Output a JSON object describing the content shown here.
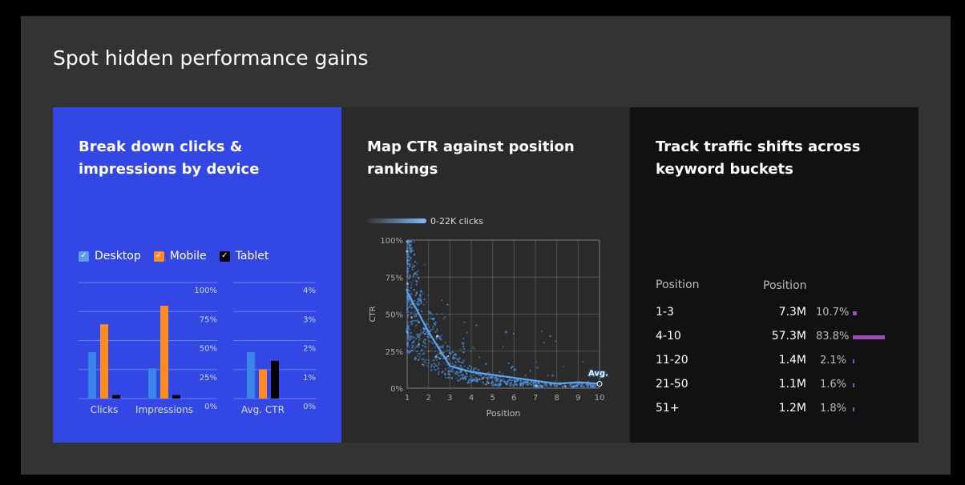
{
  "headline": "Spot hidden performance gains",
  "panels": {
    "device": {
      "title_lines": [
        "Break down clicks &",
        "impressions by device"
      ]
    },
    "ctr": {
      "title_lines": [
        "Map CTR against position",
        "rankings"
      ],
      "gradient_label": "0-22K clicks",
      "avg_label": "Avg."
    },
    "keyword": {
      "title_lines": [
        "Track traffic shifts across",
        "keyword buckets"
      ]
    }
  },
  "colors": {
    "desktop": "#3a86e8",
    "mobile": "#ff8a1e",
    "tablet": "#000000",
    "scatter": "#4a90e2",
    "bucket_bar": "#9b4fb4"
  },
  "legend": [
    {
      "label": "Desktop",
      "color": "#3a86e8",
      "icon": "check-icon"
    },
    {
      "label": "Mobile",
      "color": "#ff8a1e",
      "icon": "check-icon"
    },
    {
      "label": "Tablet",
      "color": "#000000",
      "icon": "check-icon"
    }
  ],
  "chart_data": [
    {
      "type": "bar",
      "categories": [
        "Clicks",
        "Impressions"
      ],
      "series": [
        {
          "name": "Desktop",
          "values": [
            40,
            26
          ]
        },
        {
          "name": "Mobile",
          "values": [
            64,
            80
          ]
        },
        {
          "name": "Tablet",
          "values": [
            3,
            3
          ]
        }
      ],
      "ylim": [
        0,
        100
      ],
      "yticks": [
        "100%",
        "75%",
        "50%",
        "25%",
        "0%"
      ]
    },
    {
      "type": "bar",
      "categories": [
        "Avg. CTR"
      ],
      "series": [
        {
          "name": "Desktop",
          "values": [
            1.6
          ]
        },
        {
          "name": "Mobile",
          "values": [
            1.0
          ]
        },
        {
          "name": "Tablet",
          "values": [
            1.3
          ]
        }
      ],
      "ylim": [
        0,
        4
      ],
      "yticks": [
        "4%",
        "3%",
        "2%",
        "1%",
        "0%"
      ]
    },
    {
      "type": "scatter",
      "xlabel": "Position",
      "ylabel": "CTR",
      "xlim": [
        1,
        10
      ],
      "ylim": [
        0,
        100
      ],
      "xticks": [
        "1",
        "2",
        "3",
        "4",
        "5",
        "6",
        "7",
        "8",
        "9",
        "10"
      ],
      "yticks": [
        "100%",
        "75%",
        "50%",
        "25%",
        "0%"
      ],
      "avg_line": {
        "x": [
          1,
          2,
          3,
          4,
          5,
          6,
          7,
          8,
          9,
          10
        ],
        "y": [
          65,
          38,
          15,
          11,
          9,
          7,
          5,
          3,
          4,
          3
        ]
      }
    },
    {
      "type": "table",
      "columns": [
        "Position",
        "Position"
      ],
      "rows": [
        {
          "bucket": "1-3",
          "value": "7.3M",
          "pct": "10.7%",
          "share": 10.7
        },
        {
          "bucket": "4-10",
          "value": "57.3M",
          "pct": "83.8%",
          "share": 83.8
        },
        {
          "bucket": "11-20",
          "value": "1.4M",
          "pct": "2.1%",
          "share": 2.1
        },
        {
          "bucket": "21-50",
          "value": "1.1M",
          "pct": "1.6%",
          "share": 1.6
        },
        {
          "bucket": "51+",
          "value": "1.2M",
          "pct": "1.8%",
          "share": 1.8
        }
      ]
    }
  ]
}
